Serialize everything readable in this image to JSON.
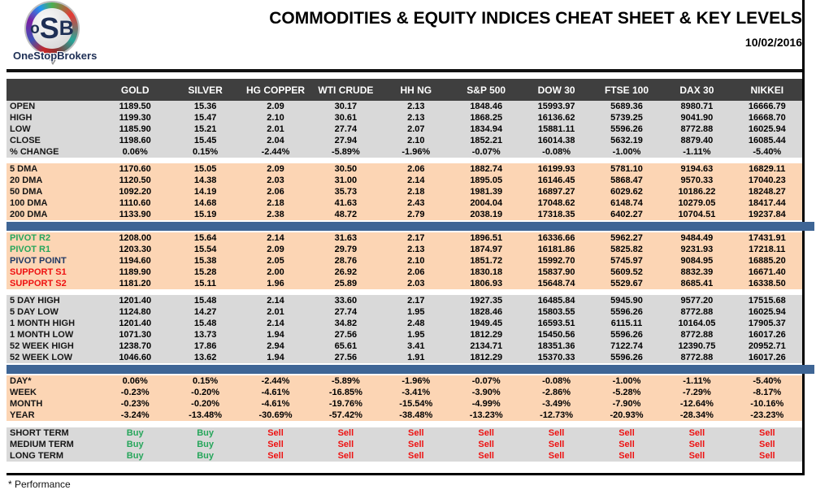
{
  "header": {
    "logo": {
      "letters": [
        "o",
        "S",
        "B"
      ],
      "brand": "OneStopBrokers"
    },
    "title": "COMMODITIES & EQUITY INDICES CHEAT SHEET & KEY LEVELS",
    "date": "10/02/2016"
  },
  "table": {
    "columns": [
      "GOLD",
      "SILVER",
      "HG COPPER",
      "WTI CRUDE",
      "HH NG",
      "S&P 500",
      "DOW 30",
      "FTSE 100",
      "DAX 30",
      "NIKKEI"
    ],
    "sections": [
      {
        "name": "ohlc",
        "style": "gray",
        "after": "gap",
        "rows": [
          {
            "label": "OPEN",
            "values": [
              "1189.50",
              "15.36",
              "2.09",
              "30.17",
              "2.13",
              "1848.46",
              "15993.97",
              "5689.36",
              "8980.71",
              "16666.79"
            ]
          },
          {
            "label": "HIGH",
            "values": [
              "1199.30",
              "15.47",
              "2.10",
              "30.61",
              "2.13",
              "1868.25",
              "16136.62",
              "5739.25",
              "9041.90",
              "16668.70"
            ]
          },
          {
            "label": "LOW",
            "values": [
              "1185.90",
              "15.21",
              "2.01",
              "27.74",
              "2.07",
              "1834.94",
              "15881.11",
              "5596.26",
              "8772.88",
              "16025.94"
            ]
          },
          {
            "label": "CLOSE",
            "values": [
              "1198.60",
              "15.45",
              "2.04",
              "27.94",
              "2.10",
              "1852.21",
              "16014.38",
              "5632.19",
              "8879.40",
              "16085.44"
            ]
          },
          {
            "label": "% CHANGE",
            "values": [
              "0.06%",
              "0.15%",
              "-2.44%",
              "-5.89%",
              "-1.96%",
              "-0.07%",
              "-0.08%",
              "-1.00%",
              "-1.11%",
              "-5.40%"
            ]
          }
        ]
      },
      {
        "name": "moving-averages",
        "style": "peach",
        "after": "bar",
        "rows": [
          {
            "label": "5 DMA",
            "values": [
              "1170.60",
              "15.05",
              "2.09",
              "30.50",
              "2.06",
              "1882.74",
              "16199.93",
              "5781.10",
              "9194.63",
              "16829.11"
            ]
          },
          {
            "label": "20 DMA",
            "values": [
              "1120.50",
              "14.38",
              "2.03",
              "31.00",
              "2.14",
              "1895.05",
              "16146.45",
              "5868.47",
              "9570.33",
              "17040.23"
            ]
          },
          {
            "label": "50 DMA",
            "values": [
              "1092.20",
              "14.19",
              "2.06",
              "35.73",
              "2.18",
              "1981.39",
              "16897.27",
              "6029.62",
              "10186.22",
              "18248.27"
            ]
          },
          {
            "label": "100 DMA",
            "values": [
              "1110.60",
              "14.68",
              "2.18",
              "41.63",
              "2.43",
              "2004.04",
              "17048.62",
              "6148.74",
              "10279.05",
              "18417.44"
            ]
          },
          {
            "label": "200 DMA",
            "values": [
              "1133.90",
              "15.19",
              "2.38",
              "48.72",
              "2.79",
              "2038.19",
              "17318.35",
              "6402.27",
              "10704.51",
              "19237.84"
            ]
          }
        ]
      },
      {
        "name": "pivots",
        "style": "peach",
        "after": "gap",
        "rows": [
          {
            "label": "PIVOT R2",
            "label_color": "green",
            "values": [
              "1208.00",
              "15.64",
              "2.14",
              "31.63",
              "2.17",
              "1896.51",
              "16336.66",
              "5962.27",
              "9484.49",
              "17431.91"
            ]
          },
          {
            "label": "PIVOT R1",
            "label_color": "green",
            "values": [
              "1203.30",
              "15.54",
              "2.09",
              "29.79",
              "2.13",
              "1874.97",
              "16181.86",
              "5825.82",
              "9231.93",
              "17218.11"
            ]
          },
          {
            "label": "PIVOT POINT",
            "label_color": "navy",
            "values": [
              "1194.60",
              "15.38",
              "2.05",
              "28.76",
              "2.10",
              "1851.72",
              "15992.70",
              "5745.97",
              "9084.95",
              "16885.20"
            ]
          },
          {
            "label": "SUPPORT S1",
            "label_color": "red",
            "values": [
              "1189.90",
              "15.28",
              "2.00",
              "26.92",
              "2.06",
              "1830.18",
              "15837.90",
              "5609.52",
              "8832.39",
              "16671.40"
            ]
          },
          {
            "label": "SUPPORT S2",
            "label_color": "red",
            "values": [
              "1181.20",
              "15.11",
              "1.96",
              "25.89",
              "2.03",
              "1806.93",
              "15648.74",
              "5529.67",
              "8685.41",
              "16338.50"
            ]
          }
        ]
      },
      {
        "name": "ranges",
        "style": "gray",
        "after": "bar",
        "rows": [
          {
            "label": "5 DAY HIGH",
            "values": [
              "1201.40",
              "15.48",
              "2.14",
              "33.60",
              "2.17",
              "1927.35",
              "16485.84",
              "5945.90",
              "9577.20",
              "17515.68"
            ]
          },
          {
            "label": "5 DAY LOW",
            "values": [
              "1124.80",
              "14.27",
              "2.01",
              "27.74",
              "1.95",
              "1828.46",
              "15803.55",
              "5596.26",
              "8772.88",
              "16025.94"
            ]
          },
          {
            "label": "1 MONTH HIGH",
            "values": [
              "1201.40",
              "15.48",
              "2.14",
              "34.82",
              "2.48",
              "1949.45",
              "16593.51",
              "6115.11",
              "10164.05",
              "17905.37"
            ]
          },
          {
            "label": "1 MONTH LOW",
            "values": [
              "1071.30",
              "13.73",
              "1.94",
              "27.56",
              "1.95",
              "1812.29",
              "15450.56",
              "5596.26",
              "8772.88",
              "16017.26"
            ]
          },
          {
            "label": "52 WEEK HIGH",
            "values": [
              "1238.70",
              "17.86",
              "2.94",
              "65.61",
              "3.41",
              "2134.71",
              "18351.36",
              "7122.74",
              "12390.75",
              "20952.71"
            ]
          },
          {
            "label": "52 WEEK LOW",
            "values": [
              "1046.60",
              "13.62",
              "1.94",
              "27.56",
              "1.91",
              "1812.29",
              "15370.33",
              "5596.26",
              "8772.88",
              "16017.26"
            ]
          }
        ]
      },
      {
        "name": "performance",
        "style": "peach",
        "after": "gap-lg",
        "rows": [
          {
            "label": "DAY*",
            "values": [
              "0.06%",
              "0.15%",
              "-2.44%",
              "-5.89%",
              "-1.96%",
              "-0.07%",
              "-0.08%",
              "-1.00%",
              "-1.11%",
              "-5.40%"
            ]
          },
          {
            "label": "WEEK",
            "values": [
              "-0.23%",
              "-0.20%",
              "-4.61%",
              "-16.85%",
              "-3.41%",
              "-3.90%",
              "-2.86%",
              "-5.28%",
              "-7.29%",
              "-8.17%"
            ]
          },
          {
            "label": "MONTH",
            "values": [
              "-0.23%",
              "-0.20%",
              "-4.61%",
              "-19.76%",
              "-15.54%",
              "-4.99%",
              "-3.49%",
              "-7.90%",
              "-12.64%",
              "-10.16%"
            ]
          },
          {
            "label": "YEAR",
            "values": [
              "-3.24%",
              "-13.48%",
              "-30.69%",
              "-57.42%",
              "-38.48%",
              "-13.23%",
              "-12.73%",
              "-20.93%",
              "-28.34%",
              "-23.23%"
            ]
          }
        ]
      },
      {
        "name": "signals",
        "style": "gray",
        "after": "none",
        "rows": [
          {
            "label": "SHORT TERM",
            "values": [
              "Buy",
              "Buy",
              "Sell",
              "Sell",
              "Sell",
              "Sell",
              "Sell",
              "Sell",
              "Sell",
              "Sell"
            ]
          },
          {
            "label": "MEDIUM TERM",
            "values": [
              "Buy",
              "Buy",
              "Sell",
              "Sell",
              "Sell",
              "Sell",
              "Sell",
              "Sell",
              "Sell",
              "Sell"
            ]
          },
          {
            "label": "LONG TERM",
            "values": [
              "Buy",
              "Buy",
              "Sell",
              "Sell",
              "Sell",
              "Sell",
              "Sell",
              "Sell",
              "Sell",
              "Sell"
            ]
          }
        ]
      }
    ]
  },
  "footnote": "* Performance",
  "colors": {
    "accent-green": "#26a65b",
    "accent-red": "#ee1111",
    "accent-navy": "#1f3864",
    "section-peach": "#fcd5b4",
    "section-gray": "#d9d9d9",
    "divider-blue": "#3e6595",
    "header-dark": "#3f3f3f"
  }
}
